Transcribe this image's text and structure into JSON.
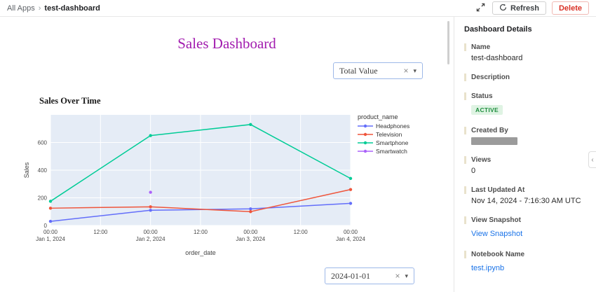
{
  "colors": {
    "title": "#a21caf",
    "link": "#1a73e8",
    "delete": "#d93025",
    "active_badge_bg": "#dff3e3",
    "active_badge_text": "#1e8e3e",
    "chart_plot_bg": "#e5ecf6"
  },
  "icons": {
    "breadcrumb_separator": "›",
    "clear": "×",
    "caret": "▾",
    "collapse_left": "‹"
  },
  "topbar": {
    "breadcrumb_root": "All Apps",
    "breadcrumb_current": "test-dashboard",
    "refresh_label": "Refresh",
    "delete_label": "Delete"
  },
  "main": {
    "title": "Sales Dashboard",
    "value_filter": "Total Value",
    "date_filter": "2024-01-01"
  },
  "chart_data": {
    "type": "line",
    "title": "Sales Over Time",
    "xlabel": "order_date",
    "ylabel": "Sales",
    "legend_title": "product_name",
    "ylim": [
      0,
      800
    ],
    "y_ticks": [
      0,
      200,
      400,
      600
    ],
    "x_ticks": [
      {
        "pos": 0.0,
        "line1": "00:00",
        "line2": "Jan 1, 2024"
      },
      {
        "pos": 0.5,
        "line1": "12:00",
        "line2": ""
      },
      {
        "pos": 1.0,
        "line1": "00:00",
        "line2": "Jan 2, 2024"
      },
      {
        "pos": 1.5,
        "line1": "12:00",
        "line2": ""
      },
      {
        "pos": 2.0,
        "line1": "00:00",
        "line2": "Jan 3, 2024"
      },
      {
        "pos": 2.5,
        "line1": "12:00",
        "line2": ""
      },
      {
        "pos": 3.0,
        "line1": "00:00",
        "line2": "Jan 4, 2024"
      }
    ],
    "series": [
      {
        "name": "Headphones",
        "color": "#636efa",
        "x": [
          0,
          1,
          2,
          3
        ],
        "values": [
          30,
          110,
          120,
          160
        ]
      },
      {
        "name": "Television",
        "color": "#ef553b",
        "x": [
          0,
          1,
          2,
          3
        ],
        "values": [
          125,
          135,
          100,
          260
        ]
      },
      {
        "name": "Smartphone",
        "color": "#00cc96",
        "x": [
          0,
          1,
          2,
          3
        ],
        "values": [
          175,
          650,
          730,
          340
        ]
      },
      {
        "name": "Smartwatch",
        "color": "#ab63fa",
        "x": [
          1
        ],
        "values": [
          240
        ]
      }
    ]
  },
  "sidebar": {
    "title": "Dashboard Details",
    "name_label": "Name",
    "name_value": "test-dashboard",
    "description_label": "Description",
    "status_label": "Status",
    "status_value": "ACTIVE",
    "created_by_label": "Created By",
    "views_label": "Views",
    "views_value": "0",
    "last_updated_label": "Last Updated At",
    "last_updated_value": "Nov 14, 2024 - 7:16:30 AM UTC",
    "view_snapshot_label": "View Snapshot",
    "view_snapshot_link": "View Snapshot",
    "notebook_label": "Notebook Name",
    "notebook_value": "test.ipynb"
  }
}
